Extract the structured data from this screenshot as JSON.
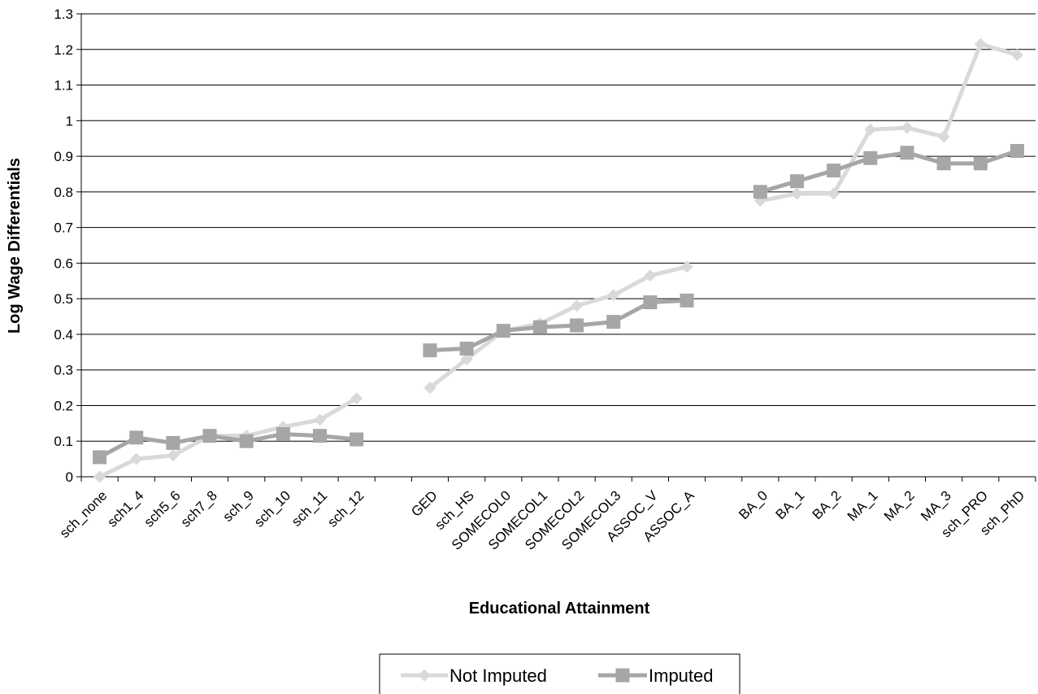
{
  "chart_data": {
    "type": "line",
    "title": "",
    "xlabel": "Educational Attainment",
    "ylabel": "Log Wage Differentials",
    "ylim": [
      0,
      1.3
    ],
    "yticks": [
      "0",
      "0.1",
      "0.2",
      "0.3",
      "0.4",
      "0.5",
      "0.6",
      "0.7",
      "0.8",
      "0.9",
      "1",
      "1.1",
      "1.2",
      "1.3"
    ],
    "grid": true,
    "legend_position": "bottom-center",
    "categories": [
      "sch_none",
      "sch1_4",
      "sch5_6",
      "sch7_8",
      "sch_9",
      "sch_10",
      "sch_11",
      "sch_12",
      "",
      "GED",
      "sch_HS",
      "SOMECOL0",
      "SOMECOL1",
      "SOMECOL2",
      "SOMECOL3",
      "ASSOC_V",
      "ASSOC_A",
      "",
      "BA_0",
      "BA_1",
      "BA_2",
      "MA_1",
      "MA_2",
      "MA_3",
      "sch_PRO",
      "sch_PhD"
    ],
    "series": [
      {
        "name": "Not Imputed",
        "color": "#d9d9d9",
        "marker": "diamond",
        "values": [
          0.0,
          0.05,
          0.06,
          0.115,
          0.115,
          0.14,
          0.16,
          0.22,
          null,
          0.25,
          0.33,
          0.41,
          0.43,
          0.48,
          0.51,
          0.565,
          0.59,
          null,
          0.775,
          0.795,
          0.795,
          0.975,
          0.98,
          0.955,
          1.215,
          1.185
        ]
      },
      {
        "name": "Imputed",
        "color": "#a6a6a6",
        "marker": "square",
        "values": [
          0.055,
          0.11,
          0.095,
          0.115,
          0.1,
          0.12,
          0.115,
          0.105,
          null,
          0.355,
          0.36,
          0.41,
          0.42,
          0.425,
          0.435,
          0.49,
          0.495,
          null,
          0.8,
          0.83,
          0.86,
          0.895,
          0.91,
          0.88,
          0.88,
          0.915
        ]
      }
    ]
  }
}
